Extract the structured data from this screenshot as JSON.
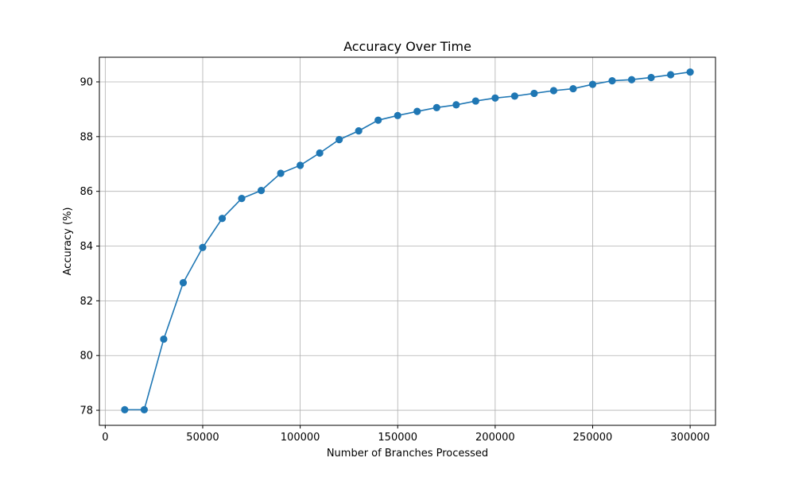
{
  "chart_data": {
    "type": "line",
    "title": "Accuracy Over Time",
    "xlabel": "Number of Branches Processed",
    "ylabel": "Accuracy (%)",
    "xlim": [
      -3000,
      313000
    ],
    "ylim": [
      77.45,
      90.9
    ],
    "xticks": [
      0,
      50000,
      100000,
      150000,
      200000,
      250000,
      300000
    ],
    "yticks": [
      78,
      80,
      82,
      84,
      86,
      88,
      90
    ],
    "grid": true,
    "series": [
      {
        "color": "#1f77b4",
        "marker": "circle",
        "x": [
          10000,
          20000,
          30000,
          40000,
          50000,
          60000,
          70000,
          80000,
          90000,
          100000,
          110000,
          120000,
          130000,
          140000,
          150000,
          160000,
          170000,
          180000,
          190000,
          200000,
          210000,
          220000,
          230000,
          240000,
          250000,
          260000,
          270000,
          280000,
          290000,
          300000
        ],
        "y": [
          78.02,
          78.02,
          80.6,
          82.66,
          83.95,
          85.01,
          85.74,
          86.03,
          86.66,
          86.95,
          87.4,
          87.89,
          88.21,
          88.6,
          88.77,
          88.92,
          89.06,
          89.16,
          89.3,
          89.41,
          89.48,
          89.58,
          89.68,
          89.75,
          89.91,
          90.04,
          90.08,
          90.16,
          90.26,
          90.36
        ]
      }
    ]
  }
}
